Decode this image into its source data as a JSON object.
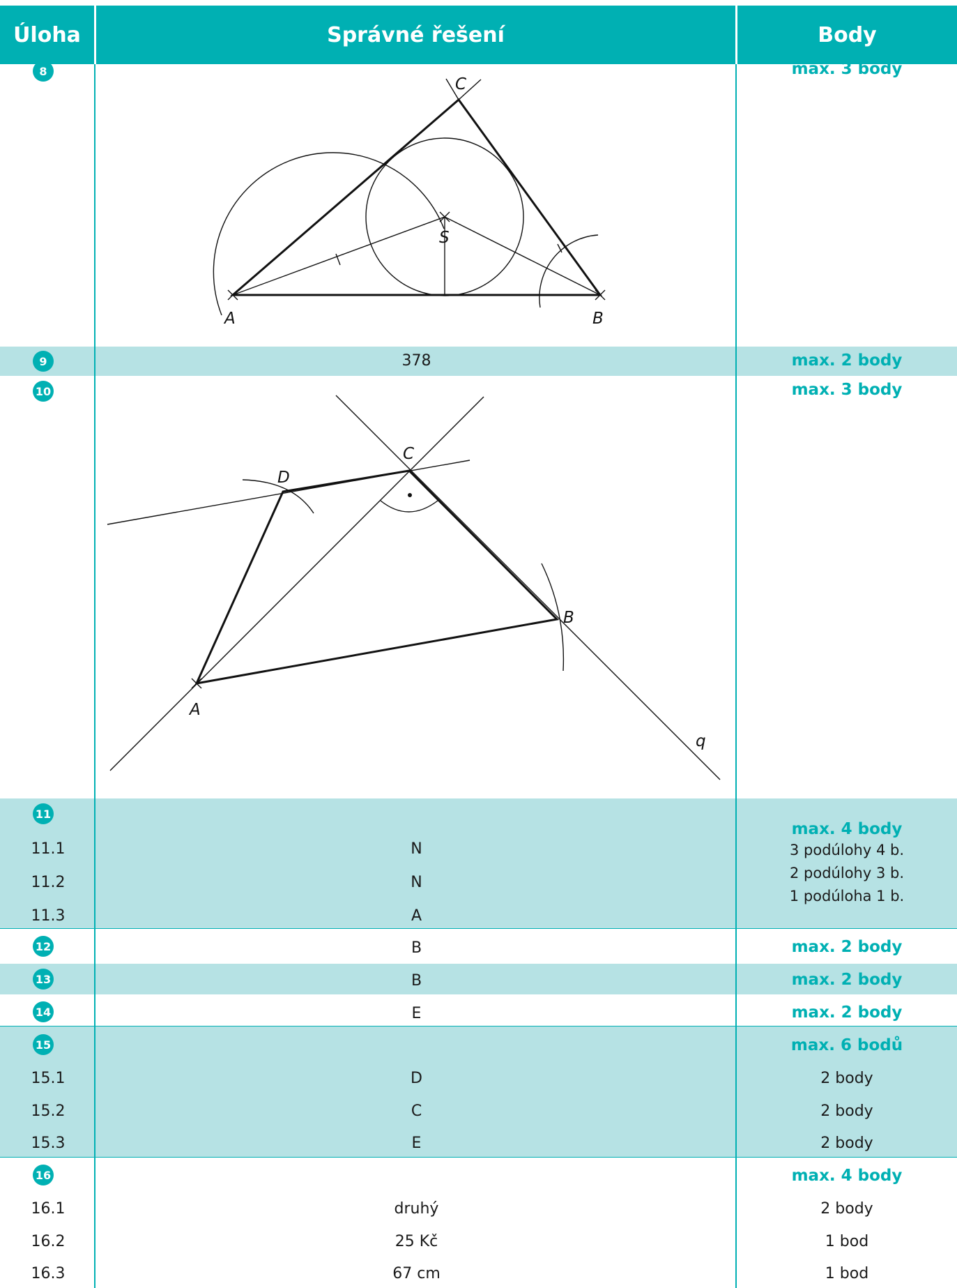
{
  "colors": {
    "accent": "#00b0b3",
    "band": "#b6e2e4"
  },
  "header": {
    "task": "Úloha",
    "solution": "Správné řešení",
    "points": "Body"
  },
  "tasks": {
    "t8": {
      "num": "8",
      "points": "max. 3 body",
      "figure": {
        "labels": {
          "A": "A",
          "B": "B",
          "C": "C",
          "S": "S"
        }
      }
    },
    "t9": {
      "num": "9",
      "answer": "378",
      "points": "max. 2 body"
    },
    "t10": {
      "num": "10",
      "points": "max. 3 body",
      "figure": {
        "labels": {
          "A": "A",
          "B": "B",
          "C": "C",
          "D": "D",
          "q": "q"
        }
      }
    },
    "t11": {
      "num": "11",
      "points": "max. 4 body",
      "notes": [
        "3 podúlohy 4 b.",
        "2 podúlohy 3 b.",
        "1 podúloha 1 b."
      ],
      "rows": [
        {
          "id": "11.1",
          "answer": "N"
        },
        {
          "id": "11.2",
          "answer": "N"
        },
        {
          "id": "11.3",
          "answer": "A"
        }
      ]
    },
    "t12": {
      "num": "12",
      "answer": "B",
      "points": "max. 2 body"
    },
    "t13": {
      "num": "13",
      "answer": "B",
      "points": "max. 2 body"
    },
    "t14": {
      "num": "14",
      "answer": "E",
      "points": "max. 2 body"
    },
    "t15": {
      "num": "15",
      "points": "max. 6 bodů",
      "rows": [
        {
          "id": "15.1",
          "answer": "D",
          "points": "2 body"
        },
        {
          "id": "15.2",
          "answer": "C",
          "points": "2 body"
        },
        {
          "id": "15.3",
          "answer": "E",
          "points": "2 body"
        }
      ]
    },
    "t16": {
      "num": "16",
      "points": "max. 4 body",
      "rows": [
        {
          "id": "16.1",
          "answer": "druhý",
          "points": "2 body"
        },
        {
          "id": "16.2",
          "answer": "25 Kč",
          "points": "1 bod"
        },
        {
          "id": "16.3",
          "answer": "67 cm",
          "points": "1 bod"
        }
      ]
    }
  }
}
